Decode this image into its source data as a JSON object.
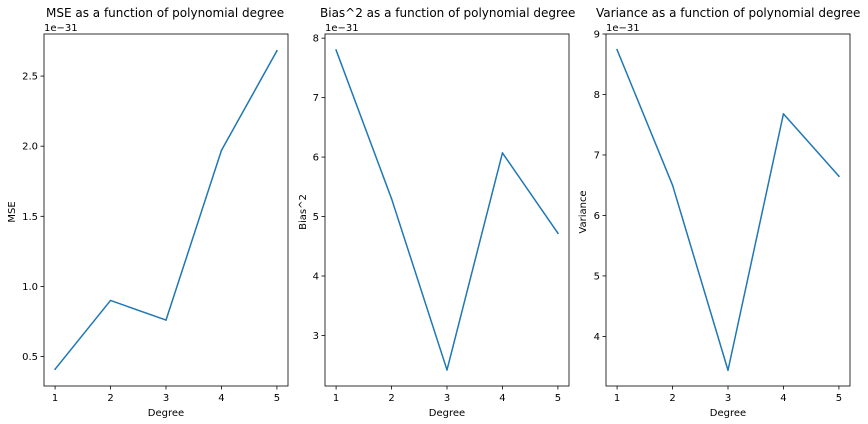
{
  "chart_data": [
    {
      "type": "line",
      "title": "MSE as a function of polynomial degree",
      "xlabel": "Degree",
      "ylabel": "MSE",
      "offset_text": "1e−31",
      "x": [
        1,
        2,
        3,
        4,
        5
      ],
      "series": [
        {
          "values": [
            0.41,
            0.9,
            0.76,
            1.97,
            2.68
          ]
        }
      ],
      "xlim": [
        0.8,
        5.2
      ],
      "ylim": [
        0.29,
        2.8
      ],
      "xticks": [
        1,
        2,
        3,
        4,
        5
      ],
      "xtick_labels": [
        "1",
        "2",
        "3",
        "4",
        "5"
      ],
      "yticks": [
        0.5,
        1.0,
        1.5,
        2.0,
        2.5
      ],
      "ytick_labels": [
        "0.5",
        "1.0",
        "1.5",
        "2.0",
        "2.5"
      ],
      "grid": false,
      "color": "#1f77b4"
    },
    {
      "type": "line",
      "title": "Bias^2 as a function of polynomial degree",
      "xlabel": "Degree",
      "ylabel": "Bias^2",
      "offset_text": "1e−31",
      "x": [
        1,
        2,
        3,
        4,
        5
      ],
      "series": [
        {
          "values": [
            7.8,
            5.3,
            2.42,
            6.07,
            4.72
          ]
        }
      ],
      "xlim": [
        0.8,
        5.2
      ],
      "ylim": [
        2.15,
        8.07
      ],
      "xticks": [
        1,
        2,
        3,
        4,
        5
      ],
      "xtick_labels": [
        "1",
        "2",
        "3",
        "4",
        "5"
      ],
      "yticks": [
        3,
        4,
        5,
        6,
        7,
        8
      ],
      "ytick_labels": [
        "3",
        "4",
        "5",
        "6",
        "7",
        "8"
      ],
      "grid": false,
      "color": "#1f77b4"
    },
    {
      "type": "line",
      "title": "Variance as a function of polynomial degree",
      "xlabel": "Degree",
      "ylabel": "Variance",
      "offset_text": "1e−31",
      "x": [
        1,
        2,
        3,
        4,
        5
      ],
      "series": [
        {
          "values": [
            8.74,
            6.5,
            3.44,
            7.68,
            6.65
          ]
        }
      ],
      "xlim": [
        0.8,
        5.2
      ],
      "ylim": [
        3.18,
        9.0
      ],
      "xticks": [
        1,
        2,
        3,
        4,
        5
      ],
      "xtick_labels": [
        "1",
        "2",
        "3",
        "4",
        "5"
      ],
      "yticks": [
        4,
        5,
        6,
        7,
        8,
        9
      ],
      "ytick_labels": [
        "4",
        "5",
        "6",
        "7",
        "8",
        "9"
      ],
      "grid": false,
      "color": "#1f77b4"
    }
  ]
}
